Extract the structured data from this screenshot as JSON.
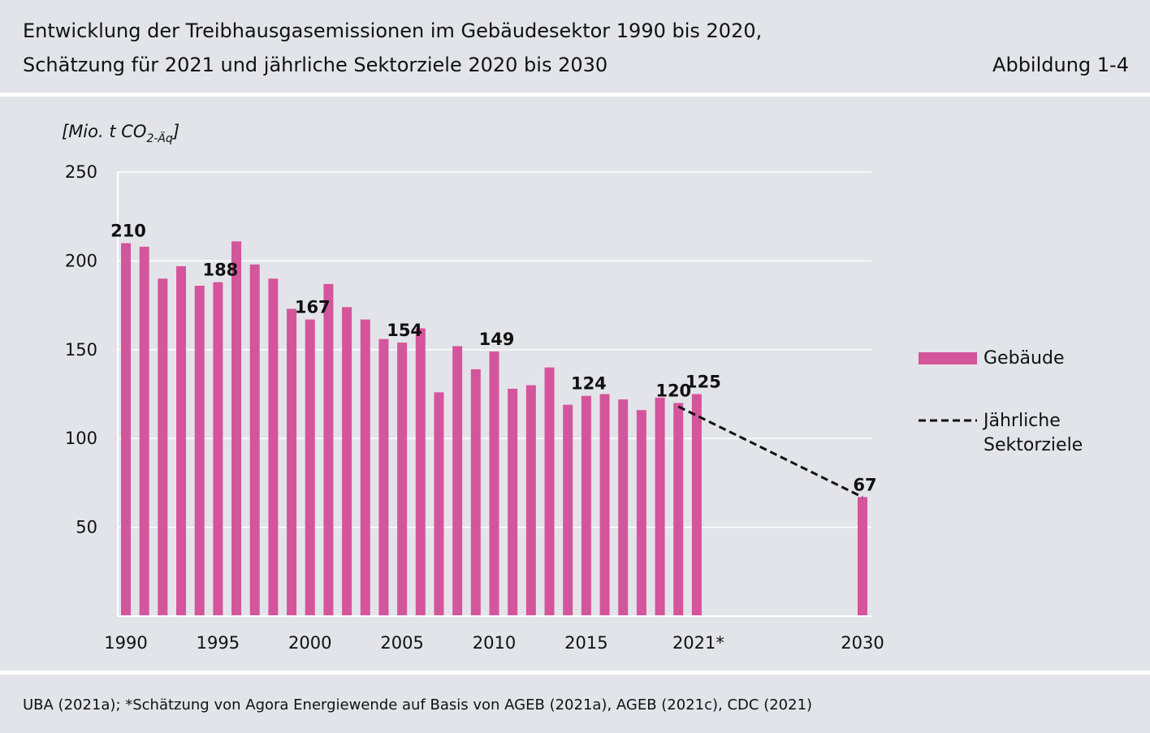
{
  "header": {
    "title_line1": "Entwicklung der Treibhausgasemissionen im Gebäudesektor 1990 bis 2020,",
    "title_line2": "Schätzung für 2021 und jährliche Sektorziele 2020 bis 2030",
    "figure_label": "Abbildung 1-4"
  },
  "footer": {
    "source": "UBA (2021a); *Schätzung von Agora Energiewende auf Basis von AGEB (2021a), AGEB (2021c), CDC (2021)"
  },
  "colors": {
    "bar": "#d4559b",
    "target_line": "#111111",
    "grid": "#ffffff",
    "background": "#e3e4e9"
  },
  "chart_data": {
    "type": "bar",
    "ylabel": "[Mio. t CO2-Äq]",
    "ylabel_main": "[Mio. t CO",
    "ylabel_sub": "2-Äq",
    "ylabel_close": "]",
    "ylim": [
      0,
      250
    ],
    "yticks": [
      50,
      100,
      150,
      200,
      250
    ],
    "grid": true,
    "legend_position": "right",
    "x_tick_labels": [
      {
        "x": 1990,
        "label": "1990"
      },
      {
        "x": 1995,
        "label": "1995"
      },
      {
        "x": 2000,
        "label": "2000"
      },
      {
        "x": 2005,
        "label": "2005"
      },
      {
        "x": 2010,
        "label": "2010"
      },
      {
        "x": 2015,
        "label": "2015"
      },
      {
        "x": 2021,
        "label": "2021*"
      },
      {
        "x": 2030,
        "label": "2030"
      }
    ],
    "series": [
      {
        "name": "Gebäude",
        "kind": "bar",
        "x": [
          1990,
          1991,
          1992,
          1993,
          1994,
          1995,
          1996,
          1997,
          1998,
          1999,
          2000,
          2001,
          2002,
          2003,
          2004,
          2005,
          2006,
          2007,
          2008,
          2009,
          2010,
          2011,
          2012,
          2013,
          2014,
          2015,
          2016,
          2017,
          2018,
          2019,
          2020,
          2021,
          2030
        ],
        "values": [
          210,
          208,
          190,
          197,
          186,
          188,
          211,
          198,
          190,
          173,
          167,
          187,
          174,
          167,
          156,
          154,
          162,
          126,
          152,
          139,
          149,
          128,
          130,
          140,
          119,
          124,
          125,
          122,
          116,
          123,
          120,
          125,
          67
        ]
      },
      {
        "name": "Jährliche Sektorziele",
        "name_line1": "Jährliche",
        "name_line2": "Sektorziele",
        "kind": "line",
        "style": "dashed",
        "x": [
          2020,
          2030
        ],
        "values": [
          118,
          67
        ]
      }
    ],
    "data_labels": [
      {
        "x": 1990,
        "value": 210,
        "label": "210"
      },
      {
        "x": 1995,
        "value": 188,
        "label": "188"
      },
      {
        "x": 2000,
        "value": 167,
        "label": "167"
      },
      {
        "x": 2005,
        "value": 154,
        "label": "154"
      },
      {
        "x": 2010,
        "value": 149,
        "label": "149"
      },
      {
        "x": 2015,
        "value": 124,
        "label": "124"
      },
      {
        "x": 2020,
        "value": 120,
        "label": "120"
      },
      {
        "x": 2021,
        "value": 125,
        "label": "125"
      },
      {
        "x": 2030,
        "value": 67,
        "label": "67"
      }
    ]
  }
}
